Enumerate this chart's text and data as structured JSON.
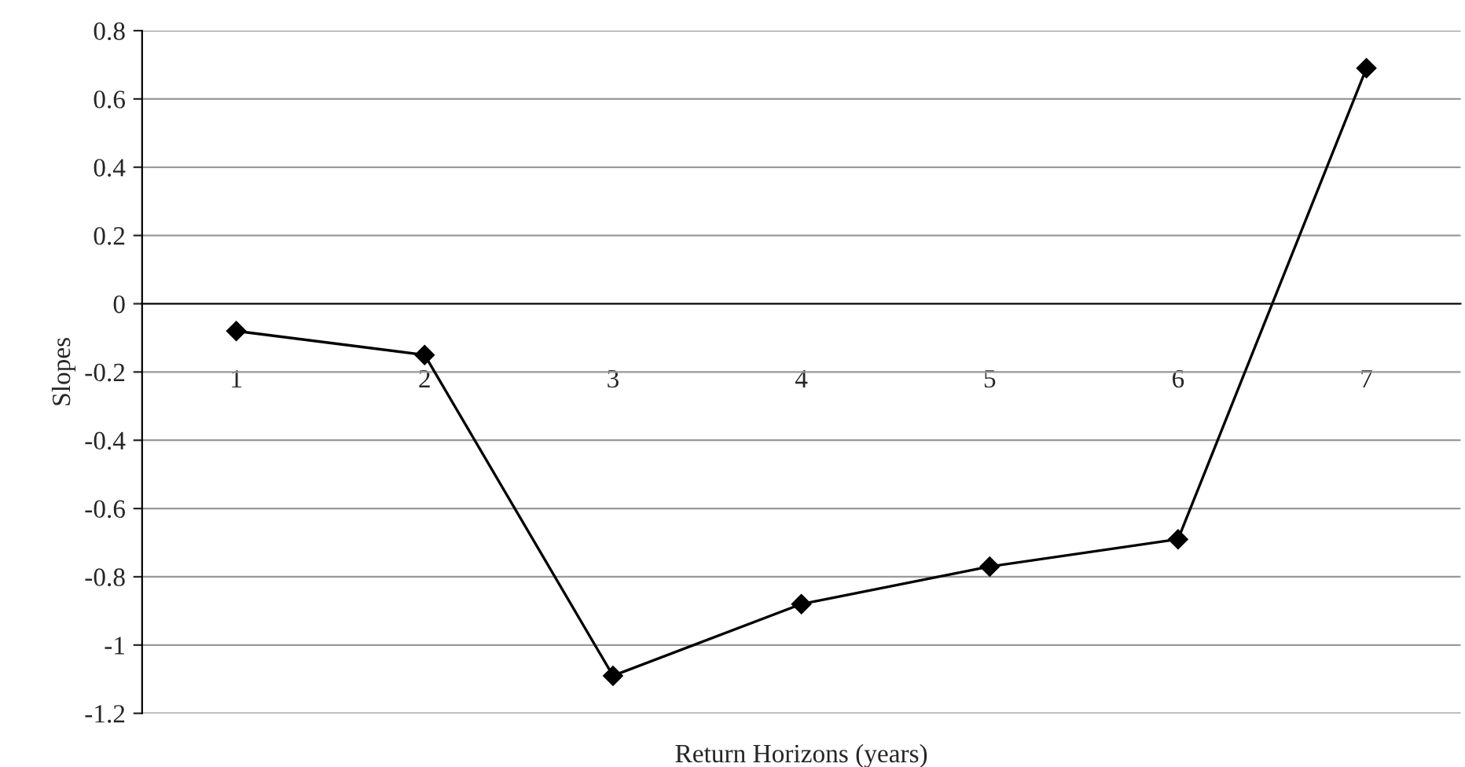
{
  "chart_data": {
    "type": "line",
    "xlabel": "Return Horizons (years)",
    "ylabel": "Slopes",
    "categories": [
      "1",
      "2",
      "3",
      "4",
      "5",
      "6",
      "7"
    ],
    "series": [
      {
        "color": "#000000",
        "values": [
          -0.08,
          -0.15,
          -1.09,
          -0.88,
          -0.77,
          -0.69,
          0.69
        ]
      }
    ],
    "ylim": [
      -1.2,
      0.8
    ],
    "yticks": [
      -1.2,
      -1,
      -0.8,
      -0.6,
      -0.4,
      -0.2,
      0,
      0.2,
      0.4,
      0.6,
      0.8
    ],
    "grid": "y",
    "marker": "diamond",
    "line_style": "solid"
  }
}
